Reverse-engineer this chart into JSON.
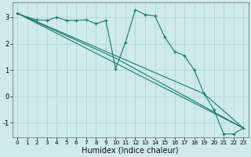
{
  "title": "",
  "xlabel": "Humidex (Indice chaleur)",
  "ylabel": "",
  "background_color": "#ceeaea",
  "grid_color": "#a8d4d4",
  "line_color": "#1a7a6e",
  "xlim": [
    -0.5,
    23.5
  ],
  "ylim": [
    -1.55,
    3.55
  ],
  "xticks": [
    0,
    1,
    2,
    3,
    4,
    5,
    6,
    7,
    8,
    9,
    10,
    11,
    12,
    13,
    14,
    15,
    16,
    17,
    18,
    19,
    20,
    21,
    22,
    23
  ],
  "yticks": [
    -1,
    0,
    1,
    2,
    3
  ],
  "line1_x": [
    0,
    1,
    2,
    3,
    4,
    5,
    6,
    7,
    8,
    9,
    10,
    11,
    12,
    13,
    14,
    15,
    16,
    17,
    18,
    19,
    20,
    21,
    22,
    23
  ],
  "line1_y": [
    3.15,
    3.0,
    2.9,
    2.88,
    3.0,
    2.88,
    2.88,
    2.9,
    2.75,
    2.88,
    1.05,
    2.05,
    3.28,
    3.1,
    3.05,
    2.25,
    1.7,
    1.55,
    1.0,
    0.1,
    -0.5,
    -1.42,
    -1.42,
    -1.2
  ],
  "line2_x": [
    0,
    23
  ],
  "line2_y": [
    3.15,
    -1.2
  ],
  "line3_x": [
    0,
    23
  ],
  "line3_y": [
    3.15,
    -1.2
  ],
  "line4_x": [
    0,
    23
  ],
  "line4_y": [
    3.15,
    -1.2
  ],
  "trend1_x": [
    0,
    23
  ],
  "trend1_y": [
    3.15,
    -1.2
  ],
  "trend2_x": [
    0,
    19,
    23
  ],
  "trend2_y": [
    3.15,
    0.1,
    -1.2
  ],
  "trend3_x": [
    0,
    10,
    23
  ],
  "trend3_y": [
    3.15,
    1.45,
    -1.2
  ]
}
